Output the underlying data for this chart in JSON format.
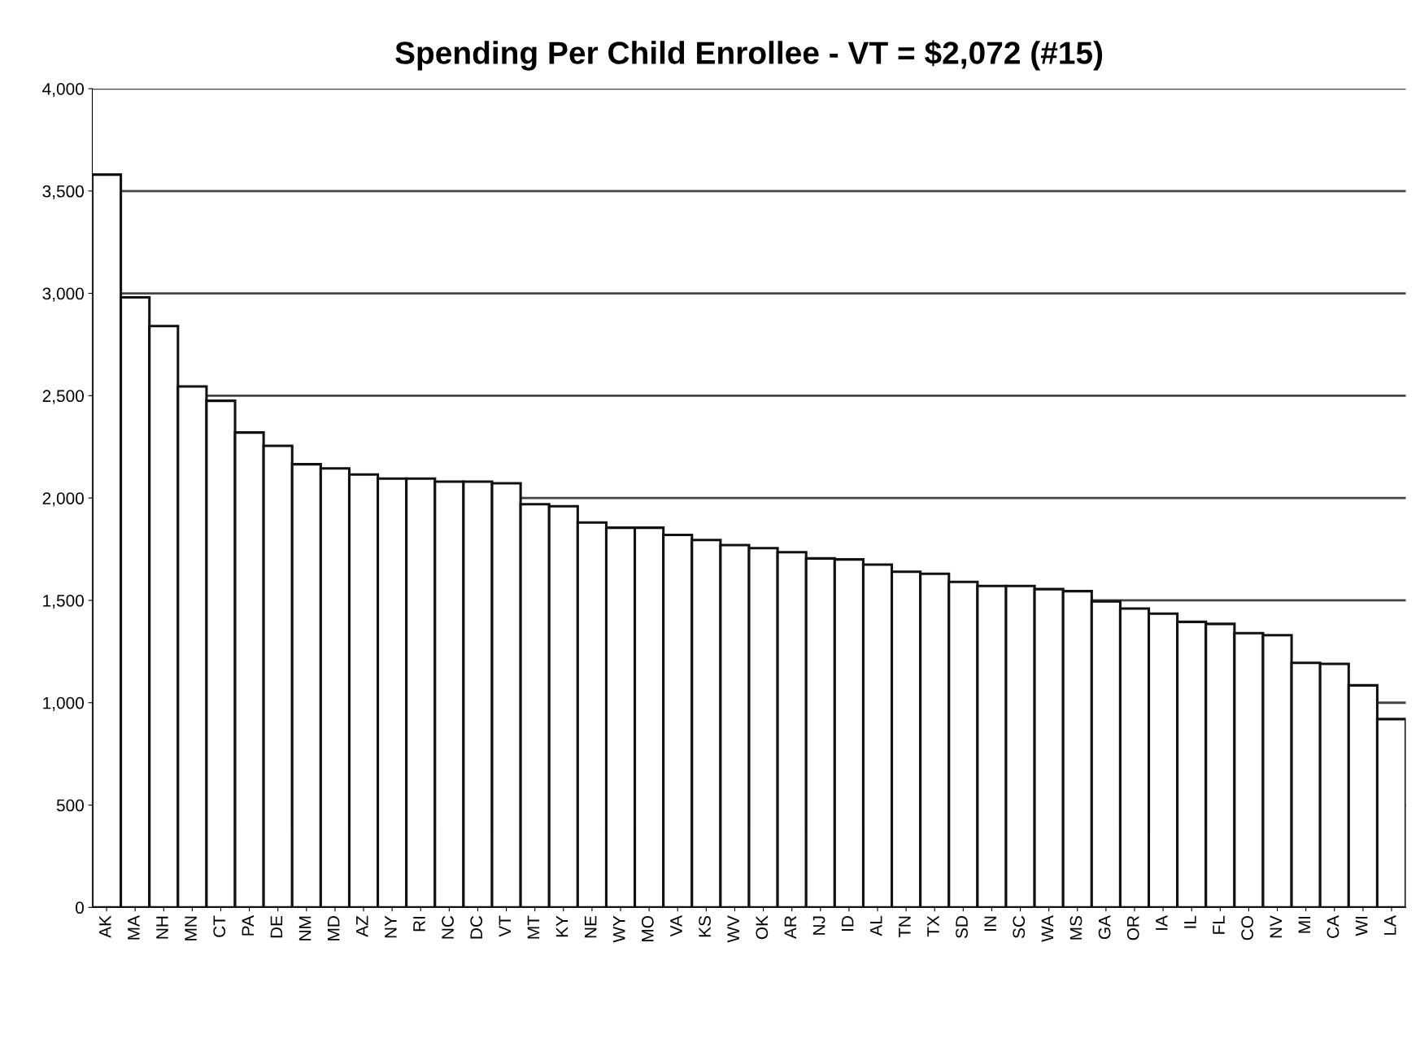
{
  "chart_data": {
    "type": "bar",
    "title": "Spending Per Child Enrollee - VT = $2,072 (#15)",
    "categories": [
      "AK",
      "MA",
      "NH",
      "MN",
      "CT",
      "PA",
      "DE",
      "NM",
      "MD",
      "AZ",
      "NY",
      "RI",
      "NC",
      "DC",
      "VT",
      "MT",
      "KY",
      "NE",
      "WY",
      "MO",
      "VA",
      "KS",
      "WV",
      "OK",
      "AR",
      "NJ",
      "ID",
      "AL",
      "TN",
      "TX",
      "SD",
      "IN",
      "SC",
      "WA",
      "MS",
      "GA",
      "OR",
      "IA",
      "IL",
      "FL",
      "CO",
      "NV",
      "MI",
      "CA",
      "WI",
      "LA"
    ],
    "values": [
      3580,
      2980,
      2840,
      2545,
      2475,
      2320,
      2255,
      2165,
      2145,
      2115,
      2095,
      2095,
      2080,
      2080,
      2072,
      1970,
      1960,
      1880,
      1855,
      1855,
      1820,
      1795,
      1770,
      1755,
      1735,
      1705,
      1700,
      1675,
      1640,
      1630,
      1590,
      1570,
      1570,
      1555,
      1545,
      1495,
      1460,
      1435,
      1395,
      1385,
      1340,
      1330,
      1195,
      1190,
      1085,
      920
    ],
    "color": "#ffffff",
    "ylim": [
      0,
      4000
    ],
    "yticks": [
      0,
      500,
      {
        "value": 1000,
        "label": "1,000"
      },
      {
        "value": 1500,
        "label": "1,500"
      },
      {
        "value": 2000,
        "label": "2,000"
      },
      {
        "value": 2500,
        "label": "2,500"
      },
      {
        "value": 3000,
        "label": "3,000"
      },
      {
        "value": 3500,
        "label": "3,500"
      },
      {
        "value": 4000,
        "label": "4,000"
      }
    ],
    "grid": "y"
  }
}
